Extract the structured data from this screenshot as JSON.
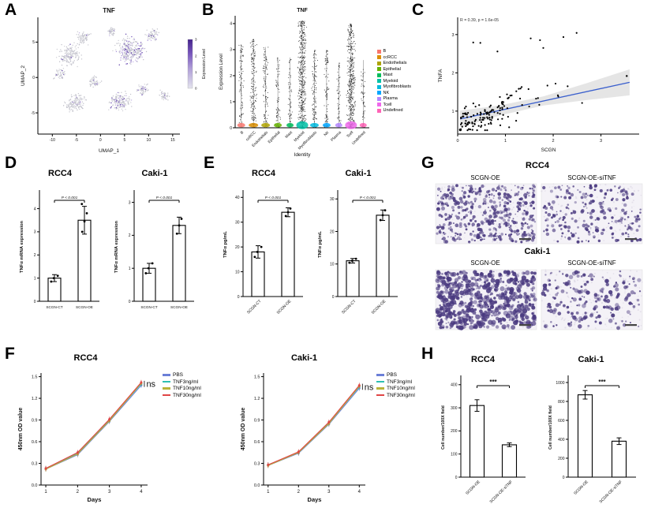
{
  "panel_labels": {
    "A": "A",
    "B": "B",
    "C": "C",
    "D": "D",
    "E": "E",
    "F": "F",
    "G": "G",
    "H": "H"
  },
  "chart_data": [
    {
      "id": "umap-tnf",
      "panel": "A",
      "type": "scatter",
      "title": "TNF",
      "xlabel": "UMAP_1",
      "ylabel": "UMAP_2",
      "xlim": [
        -13,
        16.5
      ],
      "ylim": [
        -8,
        8.5
      ],
      "xticks": [
        -10,
        -5,
        0,
        5,
        10,
        15
      ],
      "yticks": [
        -5,
        0,
        5
      ],
      "colorbar": {
        "label": "Expression Level",
        "ticks": [
          0,
          1,
          2,
          3
        ],
        "low": "#e4e4ee",
        "high": "#45238d"
      },
      "clusters": [
        {
          "cx": -6.5,
          "cy": 3.2,
          "rx": 2.8,
          "ry": 1.8,
          "n": 160,
          "purple": 0.06
        },
        {
          "cx": -3.5,
          "cy": 5.6,
          "rx": 1.8,
          "ry": 1.1,
          "n": 70,
          "purple": 0.04
        },
        {
          "cx": -8.5,
          "cy": 0.5,
          "rx": 1.4,
          "ry": 0.9,
          "n": 45,
          "purple": 0.04
        },
        {
          "cx": 6.2,
          "cy": 3.8,
          "rx": 3.6,
          "ry": 2.2,
          "n": 280,
          "purple": 0.38
        },
        {
          "cx": 10.8,
          "cy": 6.0,
          "rx": 1.8,
          "ry": 1.0,
          "n": 60,
          "purple": 0.15
        },
        {
          "cx": 2.2,
          "cy": 6.6,
          "rx": 1.2,
          "ry": 0.8,
          "n": 40,
          "purple": 0.08
        },
        {
          "cx": -5.2,
          "cy": -3.6,
          "rx": 2.4,
          "ry": 1.7,
          "n": 150,
          "purple": 0.06
        },
        {
          "cx": -1.2,
          "cy": -0.6,
          "rx": 1.4,
          "ry": 1.0,
          "n": 55,
          "purple": 0.1
        },
        {
          "cx": 4.2,
          "cy": -3.4,
          "rx": 2.6,
          "ry": 1.5,
          "n": 160,
          "purple": 0.22
        },
        {
          "cx": 8.8,
          "cy": -1.6,
          "rx": 1.4,
          "ry": 0.9,
          "n": 55,
          "purple": 0.18
        },
        {
          "cx": 13.2,
          "cy": -2.6,
          "rx": 1.3,
          "ry": 0.9,
          "n": 45,
          "purple": 0.1
        }
      ]
    },
    {
      "id": "violin-tnf",
      "panel": "B",
      "type": "violin",
      "title": "TNF",
      "xlabel": "Identity",
      "ylabel": "Expression Level",
      "ylim": [
        0,
        4.3
      ],
      "yticks": [
        0,
        1,
        2,
        3,
        4
      ],
      "categories": [
        {
          "label": "B",
          "color": "#F8766D",
          "max": 3.2,
          "n": 90,
          "jw": 7
        },
        {
          "label": "ccRCC",
          "color": "#DB8E00",
          "max": 3.4,
          "n": 170,
          "jw": 9
        },
        {
          "label": "Endothelials",
          "color": "#AEA200",
          "max": 3.1,
          "n": 100,
          "jw": 8
        },
        {
          "label": "Epithelial",
          "color": "#64B200",
          "max": 2.7,
          "n": 70,
          "jw": 7
        },
        {
          "label": "Mast",
          "color": "#00BD5C",
          "max": 2.7,
          "n": 60,
          "jw": 6
        },
        {
          "label": "Myeloid",
          "color": "#00C1A7",
          "max": 4.1,
          "n": 430,
          "jw": 12
        },
        {
          "label": "Myofibroblasts",
          "color": "#00BADE",
          "max": 3.0,
          "n": 120,
          "jw": 8
        },
        {
          "label": "NK",
          "color": "#00A6FF",
          "max": 3.0,
          "n": 90,
          "jw": 7
        },
        {
          "label": "Plasma",
          "color": "#B385FF",
          "max": 2.5,
          "n": 55,
          "jw": 6
        },
        {
          "label": "Tcell",
          "color": "#EF67EB",
          "max": 4.0,
          "n": 420,
          "jw": 12
        },
        {
          "label": "Undefined",
          "color": "#FF63B6",
          "max": 2.6,
          "n": 60,
          "jw": 6
        }
      ]
    },
    {
      "id": "scgn-tnfa-correlation",
      "panel": "C",
      "type": "scatter",
      "annotation": "R = 0.39, p = 1.6e-05",
      "xlabel": "SCGN",
      "ylabel": "TNFA",
      "xlim": [
        0,
        3.8
      ],
      "ylim": [
        0.4,
        3.45
      ],
      "xticks": [
        0,
        1,
        2,
        3
      ],
      "yticks": [
        1,
        2,
        3
      ],
      "reg": {
        "a": 0.78,
        "b": 0.27
      },
      "line_color": "#3a5fcd",
      "n_points": 148
    },
    {
      "id": "mrna-rcc4",
      "panel": "D",
      "type": "bar",
      "title": "RCC4",
      "ylabel": "TNFα mRNA expression",
      "categories": [
        "SCGN-CT",
        "SCGN-OE"
      ],
      "values": [
        1.0,
        3.5
      ],
      "errors": [
        0.15,
        0.6
      ],
      "points": [
        [
          0.85,
          1.0,
          1.1
        ],
        [
          3.0,
          3.45,
          3.8,
          4.2
        ]
      ],
      "ylim": [
        0,
        4.7
      ],
      "yticks": [
        0,
        1,
        2,
        3,
        4
      ],
      "sig": "P < 0.001"
    },
    {
      "id": "mrna-caki1",
      "panel": "D",
      "type": "bar",
      "title": "Caki-1",
      "ylabel": "TNFα mRNA expression",
      "categories": [
        "SCGN-CT",
        "SCGN-OE"
      ],
      "values": [
        1.0,
        2.3
      ],
      "errors": [
        0.15,
        0.25
      ],
      "points": [
        [
          0.85,
          1.0,
          1.15
        ],
        [
          2.05,
          2.3,
          2.5
        ]
      ],
      "ylim": [
        0,
        3.3
      ],
      "yticks": [
        0,
        1,
        2,
        3
      ],
      "sig": "P < 0.001"
    },
    {
      "id": "elisa-rcc4",
      "panel": "E",
      "type": "bar",
      "title": "RCC4",
      "ylabel": "TNFα pg/mL",
      "categories": [
        "SCGN-CT",
        "SCGN-OE"
      ],
      "values": [
        18,
        34
      ],
      "errors": [
        2.5,
        1.8
      ],
      "points": [
        [
          16,
          18,
          20
        ],
        [
          32.5,
          34,
          35.5
        ]
      ],
      "ylim": [
        0,
        42
      ],
      "yticks": [
        0,
        10,
        20,
        30,
        40
      ],
      "sig": "P < 0.001"
    },
    {
      "id": "elisa-caki1",
      "panel": "E",
      "type": "bar",
      "title": "Caki-1",
      "ylabel": "TNFα pg/mL",
      "categories": [
        "SCGN-CT",
        "SCGN-OE"
      ],
      "values": [
        11,
        25
      ],
      "errors": [
        0.7,
        1.6
      ],
      "points": [
        [
          10.4,
          11,
          11.6
        ],
        [
          23.5,
          25,
          26.5
        ]
      ],
      "ylim": [
        0,
        32
      ],
      "yticks": [
        0,
        10,
        20,
        30
      ],
      "sig": "P < 0.001"
    },
    {
      "id": "cck8-rcc4",
      "panel": "F",
      "type": "line",
      "title": "RCC4",
      "xlabel": "Days",
      "ylabel": "450nm OD value",
      "annotation": "ns",
      "x": [
        1,
        2,
        3,
        4
      ],
      "ylim": [
        0,
        1.55
      ],
      "yticks": [
        0,
        0.3,
        0.6,
        0.9,
        1.2,
        1.5
      ],
      "series": [
        {
          "name": "PBS",
          "color": "#6b7fd7",
          "values": [
            0.22,
            0.42,
            0.88,
            1.38
          ]
        },
        {
          "name": "TNF3ng/ml",
          "color": "#2fbfb3",
          "values": [
            0.23,
            0.44,
            0.9,
            1.4
          ]
        },
        {
          "name": "TNF10ng/ml",
          "color": "#b9b43a",
          "values": [
            0.22,
            0.43,
            0.89,
            1.41
          ]
        },
        {
          "name": "TNF30ng/ml",
          "color": "#e04545",
          "values": [
            0.23,
            0.45,
            0.91,
            1.42
          ]
        }
      ]
    },
    {
      "id": "cck8-caki1",
      "panel": "F",
      "type": "line",
      "title": "Caki-1",
      "xlabel": "Days",
      "ylabel": "450nm OD value",
      "annotation": "ns",
      "x": [
        1,
        2,
        3,
        4
      ],
      "ylim": [
        0,
        1.55
      ],
      "yticks": [
        0,
        0.3,
        0.6,
        0.9,
        1.2,
        1.5
      ],
      "series": [
        {
          "name": "PBS",
          "color": "#6b7fd7",
          "values": [
            0.27,
            0.44,
            0.84,
            1.34
          ]
        },
        {
          "name": "TNF3ng/ml",
          "color": "#2fbfb3",
          "values": [
            0.28,
            0.45,
            0.86,
            1.36
          ]
        },
        {
          "name": "TNF10ng/ml",
          "color": "#b9b43a",
          "values": [
            0.27,
            0.45,
            0.85,
            1.37
          ]
        },
        {
          "name": "TNF30ng/ml",
          "color": "#e04545",
          "values": [
            0.28,
            0.46,
            0.87,
            1.38
          ]
        }
      ]
    },
    {
      "id": "migration-count-rcc4",
      "panel": "H",
      "type": "bar",
      "title": "RCC4",
      "ylabel": "Cell number/100X field",
      "categories": [
        "SCGN-OE",
        "SCGN-OE-siTNF"
      ],
      "values": [
        310,
        140
      ],
      "errors": [
        25,
        8
      ],
      "ylim": [
        0,
        430
      ],
      "yticks": [
        0,
        100,
        200,
        300,
        400
      ],
      "sig": "***"
    },
    {
      "id": "migration-count-caki1",
      "panel": "H",
      "type": "bar",
      "title": "Caki-1",
      "ylabel": "Cell number/100X field",
      "categories": [
        "SCGN-OE",
        "SCGN-OE-siTNF"
      ],
      "values": [
        870,
        380
      ],
      "errors": [
        45,
        35
      ],
      "ylim": [
        0,
        1050
      ],
      "yticks": [
        0,
        200,
        400,
        600,
        800,
        1000
      ],
      "sig": "***"
    }
  ],
  "panel_g": {
    "dot_color": "#4a3a80",
    "groups": [
      {
        "title": "RCC4",
        "images": [
          {
            "label": "SCGN-OE",
            "n": 420,
            "rmin": 0.8,
            "rvar": 1.7,
            "seed": 11
          },
          {
            "label": "SCGN-OE-siTNF",
            "n": 230,
            "rmin": 0.8,
            "rvar": 1.6,
            "seed": 22
          }
        ]
      },
      {
        "title": "Caki-1",
        "images": [
          {
            "label": "SCGN-OE",
            "n": 640,
            "rmin": 0.9,
            "rvar": 2.3,
            "seed": 33
          },
          {
            "label": "SCGN-OE-siTNF",
            "n": 190,
            "rmin": 0.9,
            "rvar": 1.9,
            "seed": 44
          }
        ]
      }
    ]
  }
}
